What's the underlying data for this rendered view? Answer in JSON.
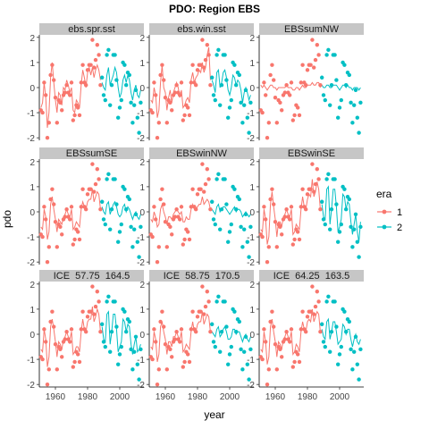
{
  "chart_data": {
    "type": "scatter",
    "title": "PDO: Region EBS",
    "xlabel": "year",
    "ylabel": "pdo",
    "xlim": [
      1950,
      2015
    ],
    "ylim": [
      -2.1,
      2.1
    ],
    "x_ticks": [
      1960,
      1980,
      2000
    ],
    "y_ticks": [
      -2,
      -1,
      0,
      1,
      2
    ],
    "grid": false,
    "legend": {
      "title": "era",
      "position": "right",
      "entries": [
        {
          "label": "1",
          "color": "#F8766D"
        },
        {
          "label": "2",
          "color": "#00BFC4"
        }
      ]
    },
    "points": {
      "description": "annual PDO index (dots), identical in every panel",
      "era1": [
        [
          1951,
          -0.9
        ],
        [
          1952,
          -1.0
        ],
        [
          1953,
          0.2
        ],
        [
          1954,
          -0.3
        ],
        [
          1955,
          -2.0
        ],
        [
          1956,
          -1.4
        ],
        [
          1957,
          0.5
        ],
        [
          1958,
          0.9
        ],
        [
          1959,
          0.3
        ],
        [
          1960,
          -0.4
        ],
        [
          1961,
          -1.4
        ],
        [
          1962,
          -0.5
        ],
        [
          1963,
          -0.6
        ],
        [
          1964,
          -0.9
        ],
        [
          1965,
          -0.3
        ],
        [
          1966,
          -0.2
        ],
        [
          1967,
          0.1
        ],
        [
          1968,
          -0.2
        ],
        [
          1969,
          -0.3
        ],
        [
          1970,
          0.2
        ],
        [
          1971,
          -1.3
        ],
        [
          1972,
          -1.1
        ],
        [
          1973,
          -0.7
        ],
        [
          1974,
          -0.8
        ],
        [
          1975,
          -1.1
        ],
        [
          1976,
          0.2
        ],
        [
          1977,
          0.9
        ],
        [
          1978,
          0.2
        ],
        [
          1979,
          0.1
        ],
        [
          1980,
          0.7
        ],
        [
          1981,
          0.9
        ],
        [
          1982,
          0.9
        ],
        [
          1983,
          1.9
        ],
        [
          1984,
          0.8
        ],
        [
          1985,
          1.1
        ],
        [
          1986,
          1.7
        ],
        [
          1987,
          1.3
        ],
        [
          1988,
          0.1
        ]
      ],
      "era2": [
        [
          1989,
          0.4
        ],
        [
          1990,
          -0.3
        ],
        [
          1991,
          -0.5
        ],
        [
          1992,
          1.3
        ],
        [
          1993,
          1.5
        ],
        [
          1994,
          -0.7
        ],
        [
          1995,
          0.1
        ],
        [
          1996,
          1.3
        ],
        [
          1997,
          1.3
        ],
        [
          1998,
          0.3
        ],
        [
          1999,
          -1.2
        ],
        [
          2000,
          -0.8
        ],
        [
          2001,
          -0.5
        ],
        [
          2002,
          1.0
        ],
        [
          2003,
          0.9
        ],
        [
          2004,
          0.1
        ],
        [
          2005,
          0.6
        ],
        [
          2006,
          0.5
        ],
        [
          2007,
          -0.6
        ],
        [
          2008,
          -1.4
        ],
        [
          2009,
          -0.7
        ],
        [
          2010,
          -0.1
        ],
        [
          2011,
          -1.2
        ],
        [
          2012,
          -1.8
        ],
        [
          2013,
          -0.6
        ]
      ]
    },
    "panels": [
      {
        "strip": "ebs.spr.sst",
        "era1": [
          -0.8,
          -0.6,
          0.2,
          -0.4,
          -1.6,
          -1.0,
          0.4,
          1.0,
          0.2,
          -0.5,
          -1.0,
          -0.2,
          -0.3,
          -0.7,
          0.0,
          -0.1,
          0.3,
          0.1,
          -0.2,
          0.0,
          -0.9,
          -1.0,
          -0.5,
          -0.6,
          -0.8,
          0.1,
          0.7,
          0.4,
          0.0,
          0.6,
          0.8,
          0.5,
          0.8,
          0.4,
          0.7,
          0.9,
          0.7,
          0.3
        ],
        "era2": [
          0.2,
          0.0,
          -0.1,
          0.5,
          0.8,
          0.1,
          0.3,
          0.5,
          0.8,
          0.6,
          0.0,
          -0.4,
          -0.2,
          0.3,
          0.5,
          0.2,
          0.5,
          0.3,
          -0.2,
          -0.5,
          -0.1,
          0.1,
          -0.3,
          -0.4,
          -0.1
        ]
      },
      {
        "strip": "ebs.win.sst",
        "era1": [
          -0.5,
          -0.6,
          0.0,
          -0.3,
          -1.2,
          -0.9,
          0.2,
          0.9,
          0.0,
          -0.2,
          -0.9,
          -0.4,
          -0.1,
          -0.6,
          -0.2,
          0.0,
          0.2,
          0.0,
          -0.4,
          -0.1,
          -0.8,
          -0.7,
          -0.5,
          -0.4,
          -0.6,
          0.3,
          0.6,
          0.2,
          0.4,
          0.5,
          0.7,
          0.6,
          1.0,
          0.6,
          0.8,
          1.3,
          1.6,
          0.3
        ],
        "era2": [
          0.3,
          0.1,
          -0.2,
          0.6,
          0.7,
          0.0,
          0.2,
          0.6,
          0.7,
          0.4,
          -0.1,
          -0.3,
          0.0,
          0.5,
          0.4,
          0.1,
          0.3,
          0.2,
          -0.1,
          -0.6,
          -0.2,
          0.0,
          -0.2,
          -0.5,
          -0.3
        ]
      },
      {
        "strip": "EBSsumNW",
        "era1": [
          0.1,
          0.0,
          0.1,
          0.0,
          -0.1,
          0.0,
          0.1,
          0.1,
          0.0,
          0.0,
          -0.1,
          0.0,
          0.0,
          0.0,
          0.0,
          0.0,
          0.1,
          0.0,
          0.0,
          0.0,
          -0.1,
          -0.1,
          0.0,
          0.0,
          -0.1,
          0.0,
          0.1,
          0.0,
          0.0,
          0.1,
          0.1,
          0.1,
          0.2,
          0.1,
          0.1,
          0.2,
          0.2,
          0.0
        ],
        "era2": [
          0.1,
          0.0,
          0.0,
          0.1,
          0.1,
          0.0,
          0.0,
          0.1,
          0.1,
          0.1,
          0.0,
          -0.1,
          0.0,
          0.1,
          0.1,
          0.0,
          0.1,
          0.0,
          0.0,
          -0.1,
          0.0,
          0.0,
          0.0,
          -0.1,
          0.0
        ]
      },
      {
        "strip": "EBSsumSE",
        "era1": [
          -0.6,
          -0.7,
          0.1,
          -0.2,
          -1.1,
          -0.8,
          0.3,
          0.6,
          0.1,
          -0.3,
          -0.8,
          -0.3,
          -0.4,
          -0.5,
          -0.2,
          -0.1,
          0.1,
          -0.1,
          -0.2,
          0.1,
          -0.7,
          -0.6,
          -0.4,
          -0.5,
          -0.6,
          0.1,
          0.4,
          0.2,
          0.1,
          0.4,
          0.5,
          0.5,
          0.9,
          0.4,
          0.6,
          0.8,
          0.7,
          0.1
        ],
        "era2": [
          0.2,
          0.0,
          -0.1,
          0.3,
          0.4,
          -0.1,
          0.1,
          0.3,
          0.4,
          0.2,
          -0.1,
          -0.2,
          -0.1,
          0.2,
          0.3,
          0.0,
          0.2,
          0.1,
          -0.1,
          -0.3,
          -0.1,
          0.0,
          -0.2,
          -0.3,
          -0.1
        ]
      },
      {
        "strip": "EBSwinNW",
        "era1": [
          -0.3,
          -0.4,
          0.0,
          -0.2,
          -0.6,
          -0.5,
          0.1,
          0.3,
          0.0,
          -0.2,
          -0.5,
          -0.2,
          -0.2,
          -0.3,
          -0.1,
          0.0,
          0.1,
          0.0,
          -0.1,
          0.0,
          -0.4,
          -0.4,
          -0.2,
          -0.3,
          -0.3,
          0.1,
          0.3,
          0.1,
          0.1,
          0.2,
          0.3,
          0.3,
          0.6,
          0.3,
          0.4,
          0.5,
          0.4,
          0.1
        ],
        "era2": [
          0.1,
          0.0,
          -0.1,
          0.2,
          0.3,
          0.0,
          0.1,
          0.2,
          0.2,
          0.1,
          0.0,
          -0.1,
          0.0,
          0.1,
          0.2,
          0.0,
          0.1,
          0.1,
          0.0,
          -0.2,
          -0.1,
          0.0,
          -0.1,
          -0.2,
          -0.1
        ]
      },
      {
        "strip": "EBSwinSE",
        "era1": [
          -0.7,
          -0.8,
          0.1,
          -0.3,
          -1.3,
          -1.0,
          0.3,
          0.8,
          0.2,
          -0.3,
          -1.0,
          -0.4,
          -0.4,
          -0.6,
          -0.2,
          -0.1,
          0.1,
          -0.1,
          -0.2,
          0.1,
          -0.9,
          -0.8,
          -0.5,
          -0.6,
          -0.7,
          0.1,
          0.6,
          0.2,
          0.1,
          0.5,
          0.7,
          0.6,
          1.3,
          0.6,
          0.8,
          1.2,
          0.9,
          0.1
        ],
        "era2": [
          0.3,
          -0.2,
          -0.3,
          0.9,
          1.0,
          -0.5,
          0.1,
          0.9,
          0.9,
          0.2,
          -0.8,
          -0.6,
          -0.3,
          0.7,
          0.6,
          0.1,
          0.4,
          0.3,
          -0.4,
          -0.9,
          -0.5,
          -0.1,
          -0.8,
          -1.2,
          -0.4
        ]
      },
      {
        "strip": "ICE  57.75  164.5",
        "era1": [
          -0.6,
          -0.7,
          0.2,
          -0.2,
          -1.3,
          -0.9,
          0.3,
          0.6,
          0.2,
          -0.3,
          -0.9,
          -0.3,
          -0.4,
          -0.6,
          -0.2,
          -0.1,
          0.1,
          -0.1,
          -0.2,
          0.1,
          -0.8,
          -0.7,
          -0.5,
          -0.5,
          -0.7,
          0.1,
          0.6,
          0.2,
          0.1,
          0.5,
          0.6,
          0.6,
          1.1,
          0.5,
          0.7,
          1.0,
          0.8,
          0.1
        ],
        "era2": [
          0.3,
          -0.2,
          -0.3,
          0.8,
          0.9,
          -0.4,
          0.1,
          0.8,
          0.8,
          0.2,
          -0.7,
          -0.5,
          -0.3,
          0.6,
          0.5,
          0.1,
          0.4,
          0.3,
          -0.4,
          -0.8,
          -0.4,
          -0.1,
          -0.7,
          -0.6,
          -0.4
        ]
      },
      {
        "strip": "ICE  58.75  170.5",
        "era1": [
          -0.5,
          -0.6,
          0.1,
          -0.2,
          -1.1,
          -0.8,
          0.3,
          0.5,
          0.1,
          -0.2,
          -0.8,
          -0.3,
          -0.3,
          -0.5,
          -0.1,
          -0.1,
          0.1,
          -0.1,
          -0.2,
          0.1,
          -0.7,
          -0.6,
          -0.4,
          -0.5,
          -0.6,
          0.1,
          0.5,
          0.1,
          0.1,
          0.4,
          0.5,
          0.5,
          0.9,
          0.4,
          0.6,
          0.8,
          0.7,
          0.1
        ],
        "era2": [
          0.1,
          0.0,
          -0.1,
          0.2,
          0.3,
          -0.1,
          0.0,
          0.2,
          0.3,
          0.1,
          -0.2,
          -0.2,
          -0.1,
          0.2,
          0.2,
          0.0,
          0.1,
          0.1,
          -0.1,
          -0.3,
          -0.1,
          0.0,
          -0.2,
          -0.3,
          -0.1
        ]
      },
      {
        "strip": "ICE  64.25  163.5",
        "era1": [
          -0.6,
          -0.7,
          0.1,
          -0.3,
          -1.2,
          -0.9,
          0.3,
          0.6,
          0.1,
          -0.3,
          -0.9,
          -0.3,
          -0.4,
          -0.6,
          -0.2,
          -0.1,
          0.1,
          -0.1,
          -0.2,
          0.1,
          -0.8,
          -0.7,
          -0.4,
          -0.5,
          -0.7,
          0.1,
          0.5,
          0.2,
          0.1,
          0.5,
          0.6,
          0.5,
          1.0,
          0.5,
          0.7,
          0.9,
          0.8,
          0.1
        ],
        "era2": [
          0.2,
          -0.1,
          -0.2,
          0.5,
          0.6,
          -0.2,
          0.1,
          0.5,
          0.5,
          0.1,
          -0.4,
          -0.3,
          -0.2,
          0.4,
          0.3,
          0.0,
          0.2,
          0.2,
          -0.2,
          -0.5,
          -0.2,
          0.0,
          -0.3,
          -0.4,
          -0.2
        ]
      }
    ],
    "x_years": {
      "era1": [
        1951,
        1952,
        1953,
        1954,
        1955,
        1956,
        1957,
        1958,
        1959,
        1960,
        1961,
        1962,
        1963,
        1964,
        1965,
        1966,
        1967,
        1968,
        1969,
        1970,
        1971,
        1972,
        1973,
        1974,
        1975,
        1976,
        1977,
        1978,
        1979,
        1980,
        1981,
        1982,
        1983,
        1984,
        1985,
        1986,
        1987,
        1988
      ],
      "era2": [
        1989,
        1990,
        1991,
        1992,
        1993,
        1994,
        1995,
        1996,
        1997,
        1998,
        1999,
        2000,
        2001,
        2002,
        2003,
        2004,
        2005,
        2006,
        2007,
        2008,
        2009,
        2010,
        2011,
        2012,
        2013
      ]
    }
  }
}
